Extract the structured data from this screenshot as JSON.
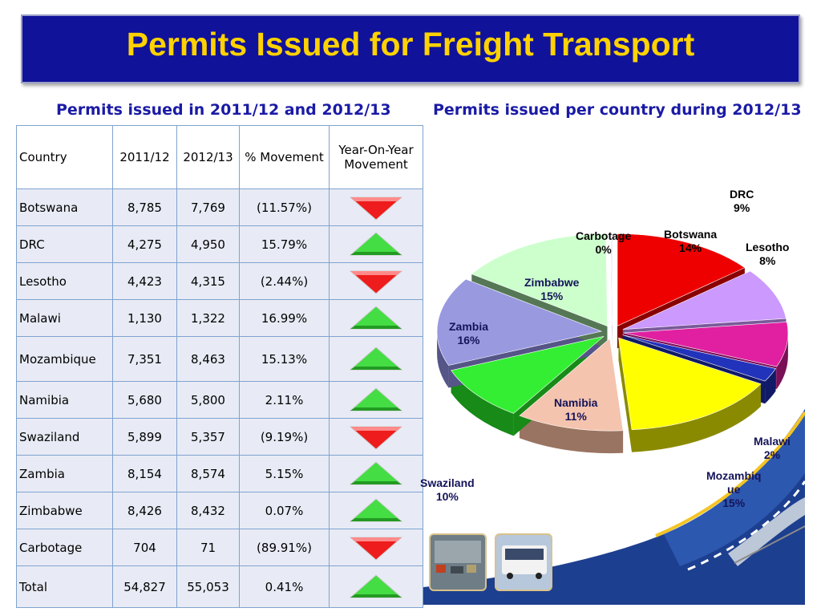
{
  "title": "Permits Issued for Freight Transport",
  "table_title": "Permits issued in 2011/12 and 2012/13",
  "pie_title": "Permits issued per country during 2012/13",
  "colors": {
    "title_bg": "#11129a",
    "title_text": "#ffd200",
    "subtitle": "#1a1aa6",
    "up": "#44dd44",
    "down": "#ee1c1c"
  },
  "table": {
    "headers": [
      "Country",
      "2011/12",
      "2012/13",
      "% Movement",
      "Year-On-Year Movement"
    ],
    "rows": [
      {
        "country": "Botswana",
        "y2011": "8,785",
        "y2012": "7,769",
        "movement": "(11.57%)",
        "trend": "down"
      },
      {
        "country": "DRC",
        "y2011": "4,275",
        "y2012": "4,950",
        "movement": "15.79%",
        "trend": "up"
      },
      {
        "country": "Lesotho",
        "y2011": "4,423",
        "y2012": "4,315",
        "movement": "(2.44%)",
        "trend": "down"
      },
      {
        "country": "Malawi",
        "y2011": "1,130",
        "y2012": "1,322",
        "movement": "16.99%",
        "trend": "up"
      },
      {
        "country": "Mozambique",
        "y2011": "7,351",
        "y2012": "8,463",
        "movement": "15.13%",
        "trend": "up"
      },
      {
        "country": "Namibia",
        "y2011": "5,680",
        "y2012": "5,800",
        "movement": "2.11%",
        "trend": "up"
      },
      {
        "country": "Swaziland",
        "y2011": "5,899",
        "y2012": "5,357",
        "movement": "(9.19%)",
        "trend": "down"
      },
      {
        "country": "Zambia",
        "y2011": "8,154",
        "y2012": "8,574",
        "movement": "5.15%",
        "trend": "up"
      },
      {
        "country": "Zimbabwe",
        "y2011": "8,426",
        "y2012": "8,432",
        "movement": "0.07%",
        "trend": "up"
      },
      {
        "country": "Carbotage",
        "y2011": "704",
        "y2012": "71",
        "movement": "(89.91%)",
        "trend": "down"
      },
      {
        "country": "Total",
        "y2011": "54,827",
        "y2012": "55,053",
        "movement": "0.41%",
        "trend": "up"
      }
    ]
  },
  "chart_data": [
    {
      "type": "table",
      "title": "Permits issued in 2011/12 and 2012/13",
      "columns": [
        "Country",
        "2011/12",
        "2012/13",
        "% Movement",
        "Year-On-Year Movement"
      ],
      "rows": [
        [
          "Botswana",
          8785,
          7769,
          -11.57,
          "down"
        ],
        [
          "DRC",
          4275,
          4950,
          15.79,
          "up"
        ],
        [
          "Lesotho",
          4423,
          4315,
          -2.44,
          "down"
        ],
        [
          "Malawi",
          1130,
          1322,
          16.99,
          "up"
        ],
        [
          "Mozambique",
          7351,
          8463,
          15.13,
          "up"
        ],
        [
          "Namibia",
          5680,
          5800,
          2.11,
          "up"
        ],
        [
          "Swaziland",
          5899,
          5357,
          -9.19,
          "down"
        ],
        [
          "Zambia",
          8154,
          8574,
          5.15,
          "up"
        ],
        [
          "Zimbabwe",
          8426,
          8432,
          0.07,
          "up"
        ],
        [
          "Carbotage",
          704,
          71,
          -89.91,
          "down"
        ],
        [
          "Total",
          54827,
          55053,
          0.41,
          "up"
        ]
      ]
    },
    {
      "type": "pie",
      "title": "Permits issued per country during 2012/13",
      "slices": [
        {
          "name": "Botswana",
          "value": 7769,
          "pct_label": "14%",
          "color": "#ee0000",
          "side": "#8a0000"
        },
        {
          "name": "DRC",
          "value": 4950,
          "pct_label": "9%",
          "color": "#cc99ff",
          "side": "#7a5a9a"
        },
        {
          "name": "Lesotho",
          "value": 4315,
          "pct_label": "8%",
          "color": "#e020a0",
          "side": "#7a1058"
        },
        {
          "name": "Malawi",
          "value": 1322,
          "pct_label": "2%",
          "color": "#2233bb",
          "side": "#101a66"
        },
        {
          "name": "Mozambique",
          "value": 8463,
          "pct_label": "15%",
          "color": "#ffff00",
          "side": "#8a8a00"
        },
        {
          "name": "Namibia",
          "value": 5800,
          "pct_label": "11%",
          "color": "#f5c4ae",
          "side": "#9a7462"
        },
        {
          "name": "Swaziland",
          "value": 5357,
          "pct_label": "10%",
          "color": "#33ee33",
          "side": "#178a17"
        },
        {
          "name": "Zambia",
          "value": 8574,
          "pct_label": "16%",
          "color": "#9999e0",
          "side": "#555588"
        },
        {
          "name": "Zimbabwe",
          "value": 8432,
          "pct_label": "15%",
          "color": "#ccffcc",
          "side": "#557755"
        },
        {
          "name": "Carbotage",
          "value": 71,
          "pct_label": "0%",
          "color": "#e8e8e8",
          "side": "#9a9a9a"
        }
      ]
    }
  ],
  "pie_labels": {
    "carbotage": {
      "name": "Carbotage",
      "pct": "0%"
    },
    "botswana": {
      "name": "Botswana",
      "pct": "14%"
    },
    "drc": {
      "name": "DRC",
      "pct": "9%"
    },
    "lesotho": {
      "name": "Lesotho",
      "pct": "8%"
    },
    "zimbabwe": {
      "name": "Zimbabwe",
      "pct": "15%"
    },
    "zambia": {
      "name": "Zambia",
      "pct": "16%"
    },
    "namibia": {
      "name": "Namibia",
      "pct": "11%"
    },
    "malawi": {
      "name": "Malawi",
      "pct": "2%"
    },
    "mozambique": {
      "name1": "Mozambiq",
      "name2": "ue",
      "pct": "15%"
    },
    "swaziland": {
      "name": "Swaziland",
      "pct": "10%"
    }
  }
}
